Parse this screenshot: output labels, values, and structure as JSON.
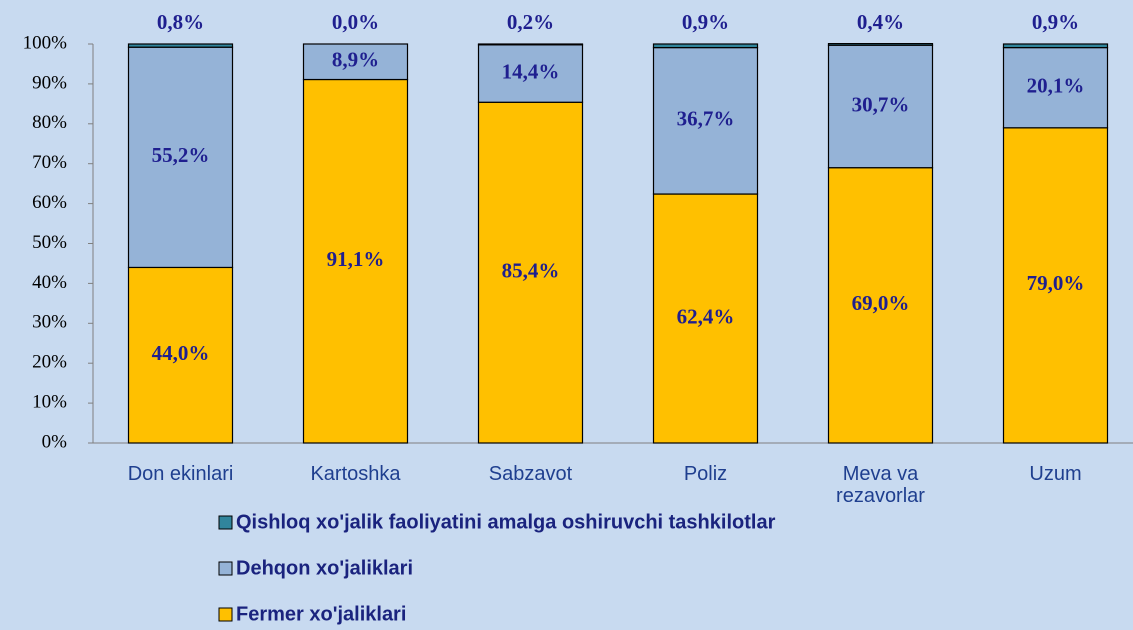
{
  "chart_data": {
    "type": "bar",
    "stacked": true,
    "categories": [
      "Don ekinlari",
      "Kartoshka",
      "Sabzavot",
      "Poliz",
      "Meva va rezavorlar",
      "Uzum"
    ],
    "series": [
      {
        "name": "Fermer xo'jaliklari",
        "color": "#ffc000",
        "values": [
          44.0,
          91.1,
          85.4,
          62.4,
          69.0,
          79.0
        ],
        "value_labels": [
          "44,0%",
          "91,1%",
          "85,4%",
          "62,4%",
          "69,0%",
          "79,0%"
        ]
      },
      {
        "name": "Dehqon xo'jaliklari",
        "color": "#95b3d7",
        "values": [
          55.2,
          8.9,
          14.4,
          36.7,
          30.7,
          20.1
        ],
        "value_labels": [
          "55,2%",
          "8,9%",
          "14,4%",
          "36,7%",
          "30,7%",
          "20,1%"
        ]
      },
      {
        "name": "Qishloq xo'jalik faoliyatini amalga oshiruvchi tashkilotlar",
        "color": "#31859c",
        "values": [
          0.8,
          0.0,
          0.2,
          0.9,
          0.4,
          0.9
        ],
        "value_labels": [
          "0,8%",
          "0,0%",
          "0,2%",
          "0,9%",
          "0,4%",
          "0,9%"
        ]
      }
    ],
    "ylim": [
      0,
      100
    ],
    "yticks": [
      {
        "value": 0,
        "label": "0%"
      },
      {
        "value": 10,
        "label": "10%"
      },
      {
        "value": 20,
        "label": "20%"
      },
      {
        "value": 30,
        "label": "30%"
      },
      {
        "value": 40,
        "label": "40%"
      },
      {
        "value": 50,
        "label": "50%"
      },
      {
        "value": 60,
        "label": "60%"
      },
      {
        "value": 70,
        "label": "70%"
      },
      {
        "value": 80,
        "label": "80%"
      },
      {
        "value": 90,
        "label": "90%"
      },
      {
        "value": 100,
        "label": "100%"
      }
    ],
    "legend": "bottom"
  }
}
